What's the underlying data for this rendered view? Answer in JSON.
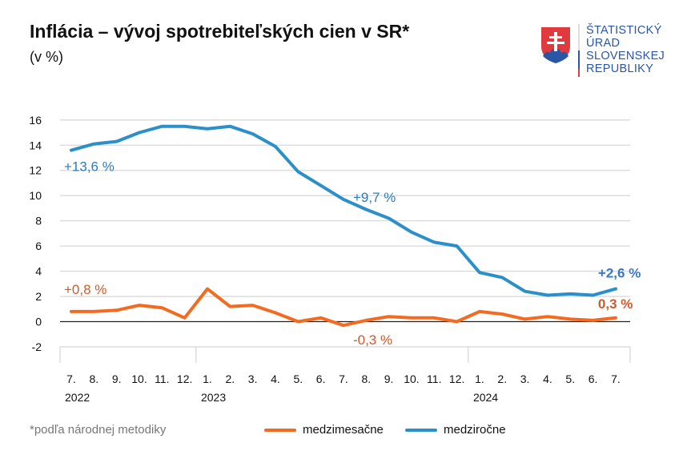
{
  "title": "Inflácia – vývoj spotrebiteľských cien v SR*",
  "subtitle": "(v %)",
  "logo": {
    "lines": [
      "ŠTATISTICKÝ",
      "ÚRAD",
      "SLOVENSKEJ",
      "REPUBLIKY"
    ]
  },
  "footnote": "*podľa národnej metodiky",
  "chart_data": {
    "type": "line",
    "ylim": [
      -2,
      16
    ],
    "yticks": [
      -2,
      0,
      2,
      4,
      6,
      8,
      10,
      12,
      14,
      16
    ],
    "grid": true,
    "legend_placement": "bottom",
    "categories": [
      "7.",
      "8.",
      "9.",
      "10.",
      "11.",
      "12.",
      "1.",
      "2.",
      "3.",
      "4.",
      "5.",
      "6.",
      "7.",
      "8.",
      "9.",
      "10.",
      "11.",
      "12.",
      "1.",
      "2.",
      "3.",
      "4.",
      "5.",
      "6.",
      "7."
    ],
    "years": [
      {
        "label": "2022",
        "start": 0
      },
      {
        "label": "2023",
        "start": 6
      },
      {
        "label": "2024",
        "start": 18
      }
    ],
    "series": [
      {
        "name": "medzimesačne",
        "color": "#f26b21",
        "values": [
          0.8,
          0.8,
          0.9,
          1.3,
          1.1,
          0.3,
          2.6,
          1.2,
          1.3,
          0.7,
          0.0,
          0.3,
          -0.3,
          0.1,
          0.4,
          0.3,
          0.3,
          0.0,
          0.8,
          0.6,
          0.2,
          0.4,
          0.2,
          0.1,
          0.3
        ]
      },
      {
        "name": "medziročne",
        "color": "#2b8fc9",
        "values": [
          13.6,
          14.1,
          14.3,
          15.0,
          15.5,
          15.5,
          15.3,
          15.5,
          14.9,
          13.9,
          11.9,
          10.8,
          9.7,
          8.9,
          8.2,
          7.1,
          6.3,
          6.0,
          3.9,
          3.5,
          2.4,
          2.1,
          2.2,
          2.1,
          2.6
        ]
      }
    ],
    "annotations": [
      {
        "text": "+13,6 %",
        "series": 1,
        "index": 0,
        "color": "#2b7bb9",
        "bold": false
      },
      {
        "text": "+9,7 %",
        "series": 1,
        "index": 12,
        "color": "#2b7bb9",
        "bold": false
      },
      {
        "text": "+2,6 %",
        "series": 1,
        "index": 24,
        "color": "#3b78c4",
        "bold": true
      },
      {
        "text": "+0,8 %",
        "series": 0,
        "index": 0,
        "color": "#d0582a",
        "bold": false
      },
      {
        "text": "-0,3 %",
        "series": 0,
        "index": 12,
        "color": "#d0582a",
        "bold": false
      },
      {
        "text": "0,3 %",
        "series": 0,
        "index": 24,
        "color": "#d0582a",
        "bold": true
      }
    ]
  }
}
